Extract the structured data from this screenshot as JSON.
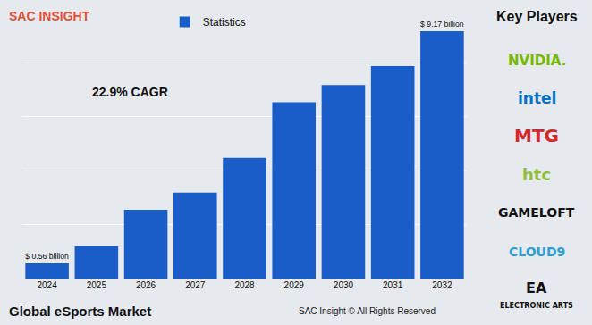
{
  "chart_data": {
    "type": "bar",
    "title": "Global eSports Market",
    "brand": "SAC INSIGHT",
    "annotations": [
      "22.9% CAGR"
    ],
    "footer": "SAC Insight © All Rights Reserved",
    "key_players": {
      "title": "Key Players",
      "names": [
        "NVIDIA.",
        "intel",
        "MTG",
        "htc",
        "GAMELOFT",
        "CLOUD9",
        "EA",
        "ELECTRONIC ARTS"
      ],
      "colors": [
        "#76b900",
        "#0071c5",
        "#d7262b",
        "#8fbf3a",
        "#111111",
        "#2a9fd6",
        "#111111",
        "#111111"
      ]
    },
    "categories": [
      "2024",
      "2025",
      "2026",
      "2027",
      "2028",
      "2029",
      "2030",
      "2031",
      "2032"
    ],
    "series": [
      {
        "name": "Statistics",
        "color": "#1a5cc8",
        "values": [
          0.56,
          1.2,
          2.55,
          3.19,
          4.48,
          6.54,
          7.18,
          7.88,
          9.17
        ],
        "value_labels": [
          "$ 0.56 billion",
          null,
          null,
          null,
          null,
          null,
          null,
          null,
          "$ 9.17 billion"
        ]
      }
    ],
    "ylim": [
      0,
      10
    ],
    "yticks": [
      0,
      2,
      4,
      6,
      8,
      10
    ],
    "grid": true,
    "tick_labels": "x",
    "legend": "top"
  }
}
